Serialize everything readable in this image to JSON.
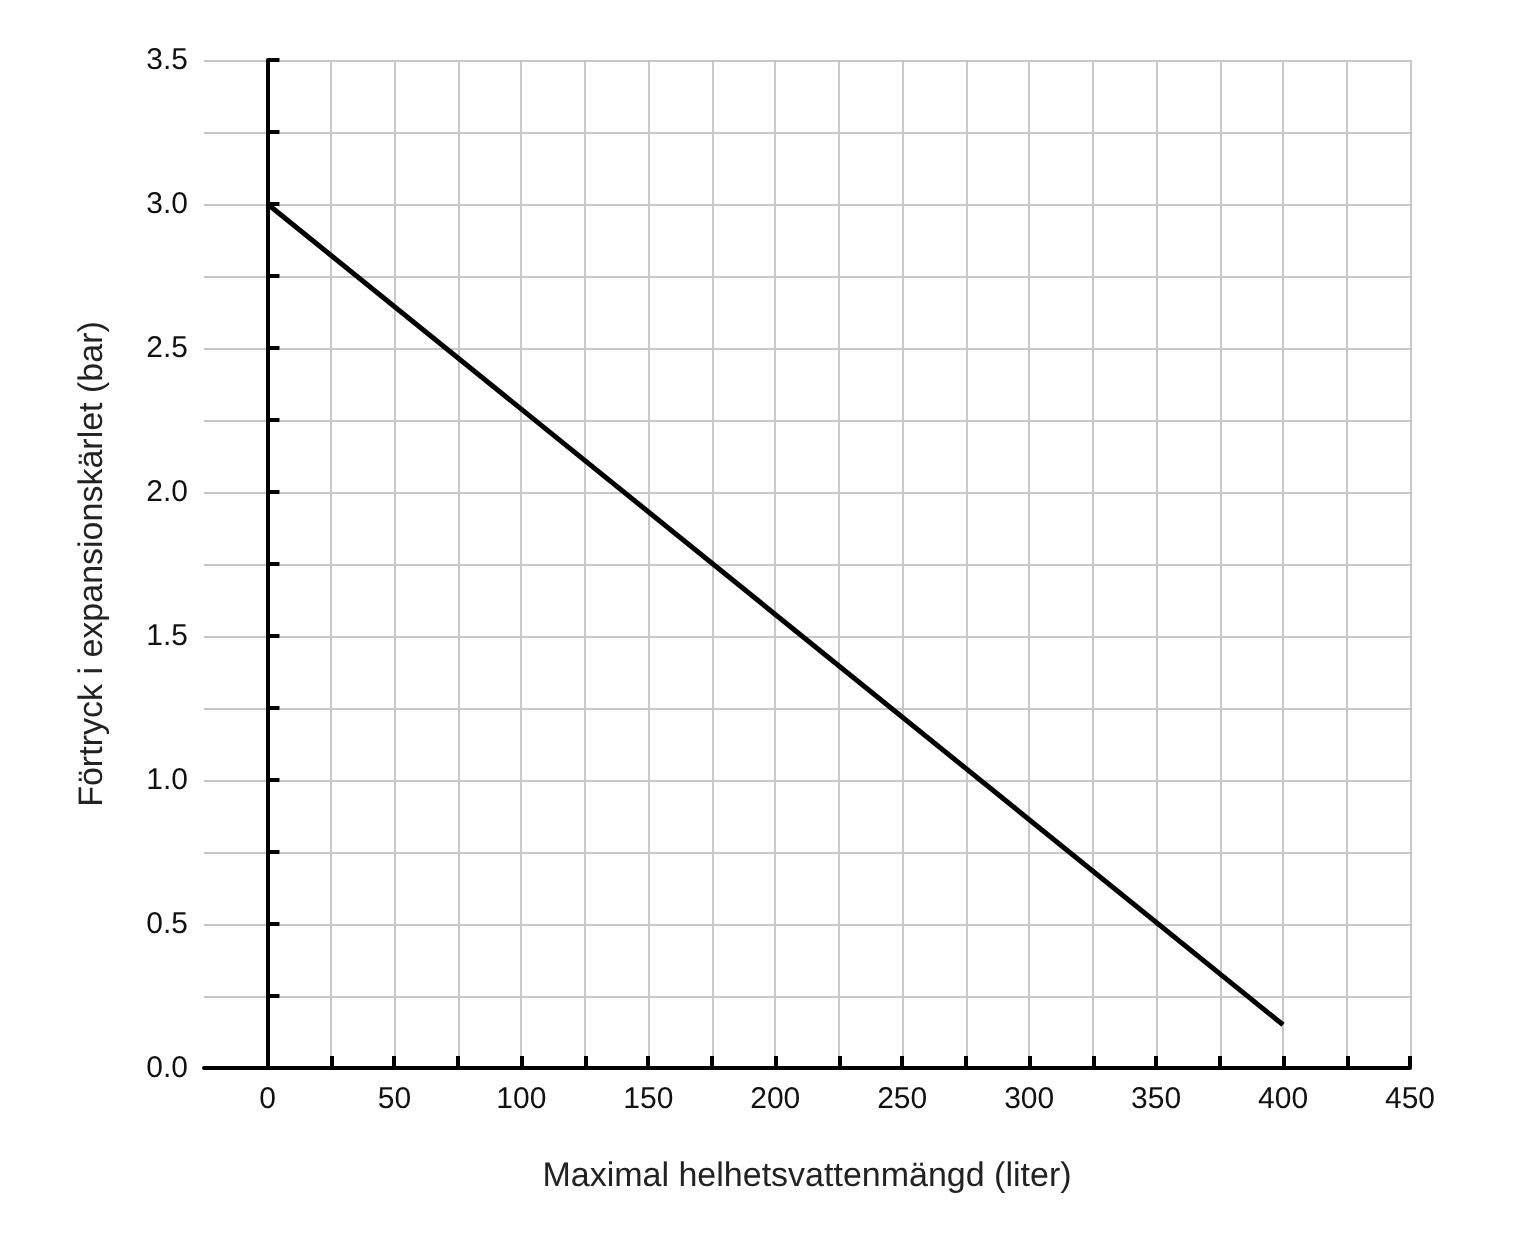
{
  "chart_data": {
    "type": "line",
    "xlabel": "Maximal helhetsvattenmängd (liter)",
    "ylabel": "Förtryck i expansionskärlet (bar)",
    "x": [
      0,
      400
    ],
    "series": [
      {
        "color": "#000000",
        "values": [
          3.0,
          0.15
        ]
      }
    ],
    "xlim": [
      -25,
      450
    ],
    "xticks": [
      0,
      {
        "value": 25,
        "label": null
      },
      50,
      {
        "value": 75,
        "label": null
      },
      100,
      {
        "value": 125,
        "label": null
      },
      150,
      {
        "value": 175,
        "label": null
      },
      200,
      {
        "value": 225,
        "label": null
      },
      250,
      {
        "value": 275,
        "label": null
      },
      300,
      {
        "value": 325,
        "label": null
      },
      350,
      {
        "value": 375,
        "label": null
      },
      400,
      {
        "value": 425,
        "label": null
      },
      450
    ],
    "ylim": [
      0,
      3.5
    ],
    "yticks": [
      {
        "value": 0,
        "label": "0.0"
      },
      {
        "value": 0.25,
        "label": null
      },
      {
        "value": 0.5,
        "label": "0.5"
      },
      {
        "value": 0.75,
        "label": null
      },
      {
        "value": 1,
        "label": "1.0"
      },
      {
        "value": 1.25,
        "label": null
      },
      {
        "value": 1.5,
        "label": "1.5"
      },
      {
        "value": 1.75,
        "label": null
      },
      {
        "value": 2,
        "label": "2.0"
      },
      {
        "value": 2.25,
        "label": null
      },
      {
        "value": 2.5,
        "label": "2.5"
      },
      {
        "value": 2.75,
        "label": null
      },
      {
        "value": 3,
        "label": "3.0"
      },
      {
        "value": 3.25,
        "label": null
      },
      {
        "value": 3.5,
        "label": "3.5"
      }
    ],
    "grid": true,
    "marker": "none",
    "line_style": "solid"
  }
}
